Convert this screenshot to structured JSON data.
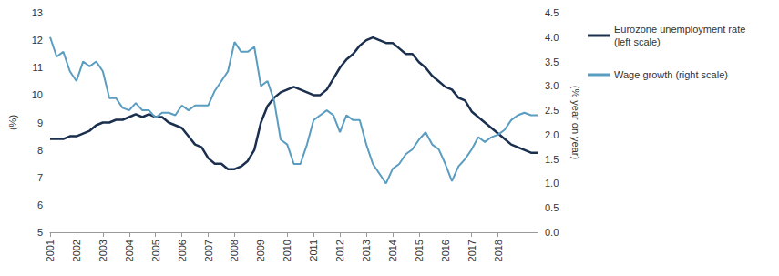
{
  "chart_data": {
    "type": "line",
    "categories": [
      "2001",
      null,
      null,
      null,
      "2002",
      null,
      null,
      null,
      "2003",
      null,
      null,
      null,
      "2004",
      null,
      null,
      null,
      "2005",
      null,
      null,
      null,
      "2006",
      null,
      null,
      null,
      "2007",
      null,
      null,
      null,
      "2008",
      null,
      null,
      null,
      "2009",
      null,
      null,
      null,
      "2010",
      null,
      null,
      null,
      "2011",
      null,
      null,
      null,
      "2012",
      null,
      null,
      null,
      "2013",
      null,
      null,
      null,
      "2014",
      null,
      null,
      null,
      "2015",
      null,
      null,
      null,
      "2016",
      null,
      null,
      null,
      "2017",
      null,
      null,
      null,
      "2018",
      null,
      null,
      null,
      null,
      null,
      null
    ],
    "y_label": "(%)",
    "y2_label": "(% year on year)",
    "ylim": [
      5,
      13
    ],
    "yticks": [
      5,
      6,
      7,
      8,
      9,
      10,
      11,
      12,
      13
    ],
    "y2lim": [
      0,
      4.5
    ],
    "y2ticks": [
      {
        "value": 0,
        "label": "0.0"
      },
      {
        "value": 0.5,
        "label": "0.5"
      },
      {
        "value": 1,
        "label": "1.0"
      },
      {
        "value": 1.5,
        "label": "1.5"
      },
      {
        "value": 2,
        "label": "2.0"
      },
      {
        "value": 2.5,
        "label": "2.5"
      },
      {
        "value": 3,
        "label": "3.0"
      },
      {
        "value": 3.5,
        "label": "3.5"
      },
      {
        "value": 4,
        "label": "4.0"
      },
      {
        "value": 4.5,
        "label": "4.5"
      }
    ],
    "grid": false,
    "legend": "right",
    "series": [
      {
        "name": "Eurozone unemployment rate (left scale)",
        "color": "#1b2f4e",
        "axis": "y",
        "values": [
          8.4,
          8.4,
          8.4,
          8.5,
          8.5,
          8.6,
          8.7,
          8.9,
          9.0,
          9.0,
          9.1,
          9.1,
          9.2,
          9.3,
          9.2,
          9.3,
          9.2,
          9.2,
          9.0,
          8.9,
          8.8,
          8.5,
          8.2,
          8.1,
          7.7,
          7.5,
          7.5,
          7.3,
          7.3,
          7.4,
          7.6,
          8.0,
          9.0,
          9.6,
          9.9,
          10.1,
          10.2,
          10.3,
          10.2,
          10.1,
          10.0,
          10.0,
          10.2,
          10.6,
          11.0,
          11.3,
          11.5,
          11.8,
          12.0,
          12.1,
          12.0,
          11.9,
          11.9,
          11.7,
          11.5,
          11.5,
          11.2,
          11.0,
          10.7,
          10.5,
          10.3,
          10.2,
          9.9,
          9.8,
          9.4,
          9.2,
          9.0,
          8.8,
          8.6,
          8.4,
          8.2,
          8.1,
          8.0,
          7.9,
          7.9
        ]
      },
      {
        "name": "Wage growth (right scale)",
        "color": "#5a9dc0",
        "axis": "y2",
        "values": [
          4.0,
          3.6,
          3.7,
          3.3,
          3.1,
          3.5,
          3.4,
          3.5,
          3.3,
          2.75,
          2.75,
          2.55,
          2.5,
          2.65,
          2.5,
          2.5,
          2.35,
          2.45,
          2.45,
          2.4,
          2.6,
          2.5,
          2.6,
          2.6,
          2.6,
          2.9,
          3.1,
          3.3,
          3.9,
          3.7,
          3.7,
          3.8,
          3.0,
          3.1,
          2.7,
          1.9,
          1.8,
          1.4,
          1.4,
          1.8,
          2.3,
          2.4,
          2.5,
          2.4,
          2.05,
          2.4,
          2.3,
          2.3,
          1.8,
          1.4,
          1.2,
          1.0,
          1.3,
          1.4,
          1.6,
          1.7,
          1.9,
          2.05,
          1.8,
          1.7,
          1.4,
          1.05,
          1.35,
          1.5,
          1.7,
          1.95,
          1.85,
          1.95,
          2.0,
          2.1,
          2.3,
          2.4,
          2.45,
          2.4,
          2.4
        ]
      }
    ]
  }
}
